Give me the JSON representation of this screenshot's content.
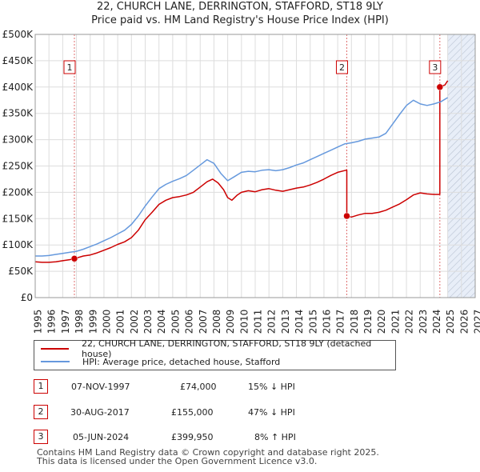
{
  "title_line1": "22, CHURCH LANE, DERRINGTON, STAFFORD, ST18 9LY",
  "title_line2": "Price paid vs. HM Land Registry's House Price Index (HPI)",
  "colors": {
    "price": "#cc0000",
    "hpi": "#6699dd",
    "grid": "#dddddd",
    "shade": "#e8eef8",
    "marker_border": "#cc0000"
  },
  "chart_data": {
    "type": "line",
    "title": "Price paid vs. HM Land Registry's House Price Index (HPI)",
    "xlim": [
      1995,
      2027
    ],
    "ylim": [
      0,
      500000
    ],
    "x_ticks": [
      "1995",
      "1996",
      "1997",
      "1998",
      "1999",
      "2000",
      "2001",
      "2002",
      "2003",
      "2004",
      "2005",
      "2006",
      "2007",
      "2008",
      "2009",
      "2010",
      "2011",
      "2012",
      "2013",
      "2014",
      "2015",
      "2016",
      "2017",
      "2018",
      "2019",
      "2020",
      "2021",
      "2022",
      "2023",
      "2024",
      "2025",
      "2026",
      "2027"
    ],
    "y_ticks": [
      {
        "value": 0,
        "label": "£0"
      },
      {
        "value": 50000,
        "label": "£50K"
      },
      {
        "value": 100000,
        "label": "£100K"
      },
      {
        "value": 150000,
        "label": "£150K"
      },
      {
        "value": 200000,
        "label": "£200K"
      },
      {
        "value": 250000,
        "label": "£250K"
      },
      {
        "value": 300000,
        "label": "£300K"
      },
      {
        "value": 350000,
        "label": "£350K"
      },
      {
        "value": 400000,
        "label": "£400K"
      },
      {
        "value": 450000,
        "label": "£450K"
      },
      {
        "value": 500000,
        "label": "£500K"
      }
    ],
    "forecast_from": 2025.0,
    "series": [
      {
        "name": "22, CHURCH LANE, DERRINGTON, STAFFORD, ST18 9LY (detached house)",
        "color": "#cc0000",
        "x": [
          1995.0,
          1995.5,
          1996.0,
          1996.5,
          1997.0,
          1997.5,
          1997.85,
          1998.5,
          1999.0,
          1999.5,
          2000.0,
          2000.5,
          2001.0,
          2001.5,
          2002.0,
          2002.5,
          2003.0,
          2003.5,
          2004.0,
          2004.5,
          2005.0,
          2005.5,
          2006.0,
          2006.5,
          2007.0,
          2007.5,
          2007.9,
          2008.3,
          2008.7,
          2009.0,
          2009.3,
          2009.7,
          2010.0,
          2010.5,
          2011.0,
          2011.5,
          2012.0,
          2012.5,
          2013.0,
          2013.5,
          2014.0,
          2014.5,
          2015.0,
          2015.5,
          2016.0,
          2016.5,
          2017.0,
          2017.6,
          2017.66,
          2017.66,
          2018.0,
          2018.5,
          2019.0,
          2019.5,
          2020.0,
          2020.5,
          2021.0,
          2021.5,
          2022.0,
          2022.5,
          2023.0,
          2023.5,
          2024.0,
          2024.42,
          2024.43,
          2024.43,
          2024.6,
          2024.8,
          2025.0
        ],
        "values": [
          68000,
          67000,
          67000,
          68000,
          70000,
          72000,
          74000,
          79000,
          81000,
          85000,
          90000,
          95000,
          101000,
          106000,
          114000,
          128000,
          148000,
          162000,
          177000,
          185000,
          190000,
          192000,
          195000,
          200000,
          210000,
          220000,
          225000,
          218000,
          205000,
          190000,
          185000,
          195000,
          200000,
          203000,
          201000,
          205000,
          207000,
          204000,
          202000,
          205000,
          208000,
          210000,
          214000,
          219000,
          225000,
          232000,
          238000,
          242000,
          242000,
          155000,
          153000,
          157000,
          160000,
          160000,
          162000,
          166000,
          172000,
          178000,
          186000,
          195000,
          199000,
          197000,
          196000,
          196000,
          196000,
          399950,
          402000,
          404000,
          412000
        ]
      },
      {
        "name": "HPI: Average price, detached house, Stafford",
        "color": "#6699dd",
        "x": [
          1995.0,
          1995.5,
          1996.0,
          1996.5,
          1997.0,
          1997.5,
          1998.0,
          1998.5,
          1999.0,
          1999.5,
          2000.0,
          2000.5,
          2001.0,
          2001.5,
          2002.0,
          2002.5,
          2003.0,
          2003.5,
          2004.0,
          2004.5,
          2005.0,
          2005.5,
          2006.0,
          2006.5,
          2007.0,
          2007.5,
          2008.0,
          2008.5,
          2009.0,
          2009.5,
          2010.0,
          2010.5,
          2011.0,
          2011.5,
          2012.0,
          2012.5,
          2013.0,
          2013.5,
          2014.0,
          2014.5,
          2015.0,
          2015.5,
          2016.0,
          2016.5,
          2017.0,
          2017.5,
          2018.0,
          2018.5,
          2019.0,
          2019.5,
          2020.0,
          2020.5,
          2021.0,
          2021.5,
          2022.0,
          2022.5,
          2023.0,
          2023.5,
          2024.0,
          2024.5,
          2025.0
        ],
        "values": [
          79000,
          79000,
          80000,
          82000,
          84000,
          86000,
          88000,
          92000,
          97000,
          102000,
          108000,
          114000,
          121000,
          128000,
          139000,
          155000,
          174000,
          191000,
          207000,
          215000,
          221000,
          226000,
          232000,
          242000,
          252000,
          262000,
          255000,
          236000,
          222000,
          230000,
          238000,
          240000,
          239000,
          242000,
          243000,
          241000,
          243000,
          247000,
          252000,
          256000,
          262000,
          268000,
          274000,
          280000,
          286000,
          292000,
          294000,
          297000,
          301000,
          303000,
          305000,
          312000,
          330000,
          348000,
          365000,
          375000,
          368000,
          365000,
          368000,
          372000,
          380000
        ]
      }
    ],
    "markers": [
      {
        "label": "1",
        "x": 1997.85,
        "value": 74000
      },
      {
        "label": "2",
        "x": 2017.66,
        "value": 155000
      },
      {
        "label": "3",
        "x": 2024.43,
        "value": 399950
      }
    ]
  },
  "legend": {
    "price_label": "22, CHURCH LANE, DERRINGTON, STAFFORD, ST18 9LY (detached house)",
    "hpi_label": "HPI: Average price, detached house, Stafford"
  },
  "transactions": [
    {
      "num": "1",
      "date": "07-NOV-1997",
      "price": "£74,000",
      "delta": "15% ↓ HPI"
    },
    {
      "num": "2",
      "date": "30-AUG-2017",
      "price": "£155,000",
      "delta": "47% ↓ HPI"
    },
    {
      "num": "3",
      "date": "05-JUN-2024",
      "price": "£399,950",
      "delta": "8% ↑ HPI"
    }
  ],
  "footer_line1": "Contains HM Land Registry data © Crown copyright and database right 2025.",
  "footer_line2": "This data is licensed under the Open Government Licence v3.0."
}
